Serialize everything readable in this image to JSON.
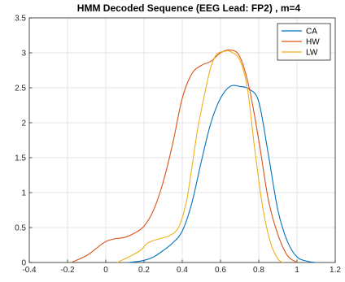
{
  "chart_data": {
    "type": "line",
    "title": "HMM Decoded Sequence (EEG Lead: FP2) , m=4",
    "xlabel": "",
    "ylabel": "",
    "xlim": [
      -0.4,
      1.2
    ],
    "ylim": [
      0,
      3.5
    ],
    "xticks": [
      -0.4,
      -0.2,
      0,
      0.2,
      0.4,
      0.6,
      0.8,
      1,
      1.2
    ],
    "yticks": [
      0,
      0.5,
      1,
      1.5,
      2,
      2.5,
      3,
      3.5
    ],
    "xtick_labels": [
      "-0.4",
      "-0.2",
      "0",
      "0.2",
      "0.4",
      "0.6",
      "0.8",
      "1",
      "1.2"
    ],
    "ytick_labels": [
      "0",
      "0.5",
      "1",
      "1.5",
      "2",
      "2.5",
      "3",
      "3.5"
    ],
    "grid": true,
    "legend_position": "top-right",
    "series": [
      {
        "name": "CA",
        "color": "#0072BD",
        "x": [
          0.12,
          0.2,
          0.25,
          0.3,
          0.35,
          0.4,
          0.45,
          0.5,
          0.55,
          0.6,
          0.65,
          0.7,
          0.75,
          0.8,
          0.85,
          0.9,
          0.95,
          1.0,
          1.05,
          1.1
        ],
        "y": [
          0.0,
          0.03,
          0.08,
          0.17,
          0.28,
          0.45,
          0.85,
          1.45,
          2.0,
          2.35,
          2.52,
          2.52,
          2.48,
          2.3,
          1.55,
          0.75,
          0.3,
          0.08,
          0.02,
          0.0
        ]
      },
      {
        "name": "HW",
        "color": "#D95319",
        "x": [
          -0.18,
          -0.1,
          -0.05,
          0.0,
          0.05,
          0.1,
          0.15,
          0.2,
          0.25,
          0.3,
          0.35,
          0.4,
          0.45,
          0.5,
          0.55,
          0.6,
          0.65,
          0.7,
          0.75,
          0.8,
          0.85,
          0.9,
          0.95,
          1.0
        ],
        "y": [
          0.0,
          0.1,
          0.2,
          0.3,
          0.34,
          0.36,
          0.42,
          0.52,
          0.75,
          1.15,
          1.7,
          2.35,
          2.7,
          2.82,
          2.88,
          3.0,
          3.04,
          2.95,
          2.5,
          1.75,
          0.9,
          0.4,
          0.1,
          0.0
        ]
      },
      {
        "name": "LW",
        "color": "#EDB120",
        "x": [
          0.06,
          0.12,
          0.18,
          0.22,
          0.28,
          0.33,
          0.38,
          0.42,
          0.45,
          0.48,
          0.52,
          0.55,
          0.58,
          0.62,
          0.65,
          0.7,
          0.74,
          0.78,
          0.82,
          0.86,
          0.9,
          0.93
        ],
        "y": [
          0.0,
          0.08,
          0.17,
          0.28,
          0.34,
          0.38,
          0.5,
          0.85,
          1.35,
          1.9,
          2.45,
          2.8,
          2.98,
          3.02,
          3.02,
          2.9,
          2.5,
          1.6,
          0.8,
          0.3,
          0.05,
          0.0
        ]
      }
    ]
  }
}
